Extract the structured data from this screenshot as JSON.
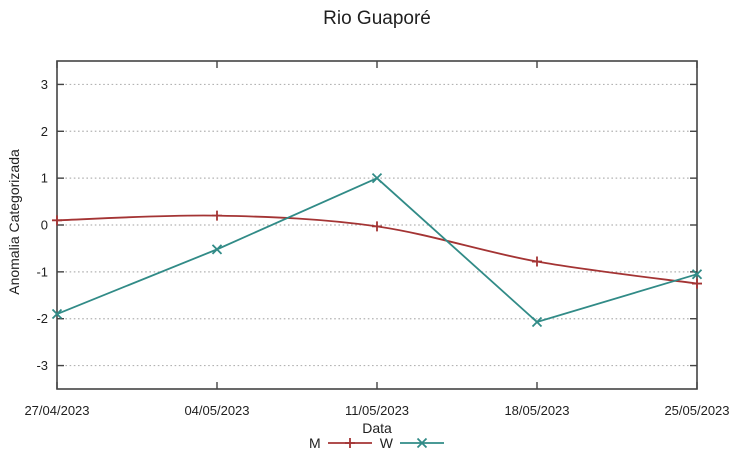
{
  "chart_data": {
    "type": "line",
    "title": "Rio Guaporé",
    "xlabel": "Data",
    "ylabel": "Anomalia Categorizada",
    "categories": [
      "27/04/2023",
      "04/05/2023",
      "11/05/2023",
      "18/05/2023",
      "25/05/2023"
    ],
    "ylim": [
      -3.5,
      3.5
    ],
    "yticks": [
      -3,
      -2,
      -1,
      0,
      1,
      2,
      3
    ],
    "grid": "horizontal-dotted",
    "legend_position": "below-x-label",
    "series": [
      {
        "name": "M",
        "marker": "plus",
        "color": "#a43434",
        "smooth": true,
        "values": [
          0.1,
          0.2,
          -0.03,
          -0.78,
          -1.25
        ]
      },
      {
        "name": "W",
        "marker": "cross",
        "color": "#318b87",
        "smooth": false,
        "values": [
          -1.9,
          -0.52,
          1.0,
          -2.07,
          -1.05
        ]
      }
    ],
    "colors": {
      "axis": "#444444",
      "grid": "#b3b3b3",
      "text": "#1f1f1f",
      "background": "#ffffff"
    }
  }
}
